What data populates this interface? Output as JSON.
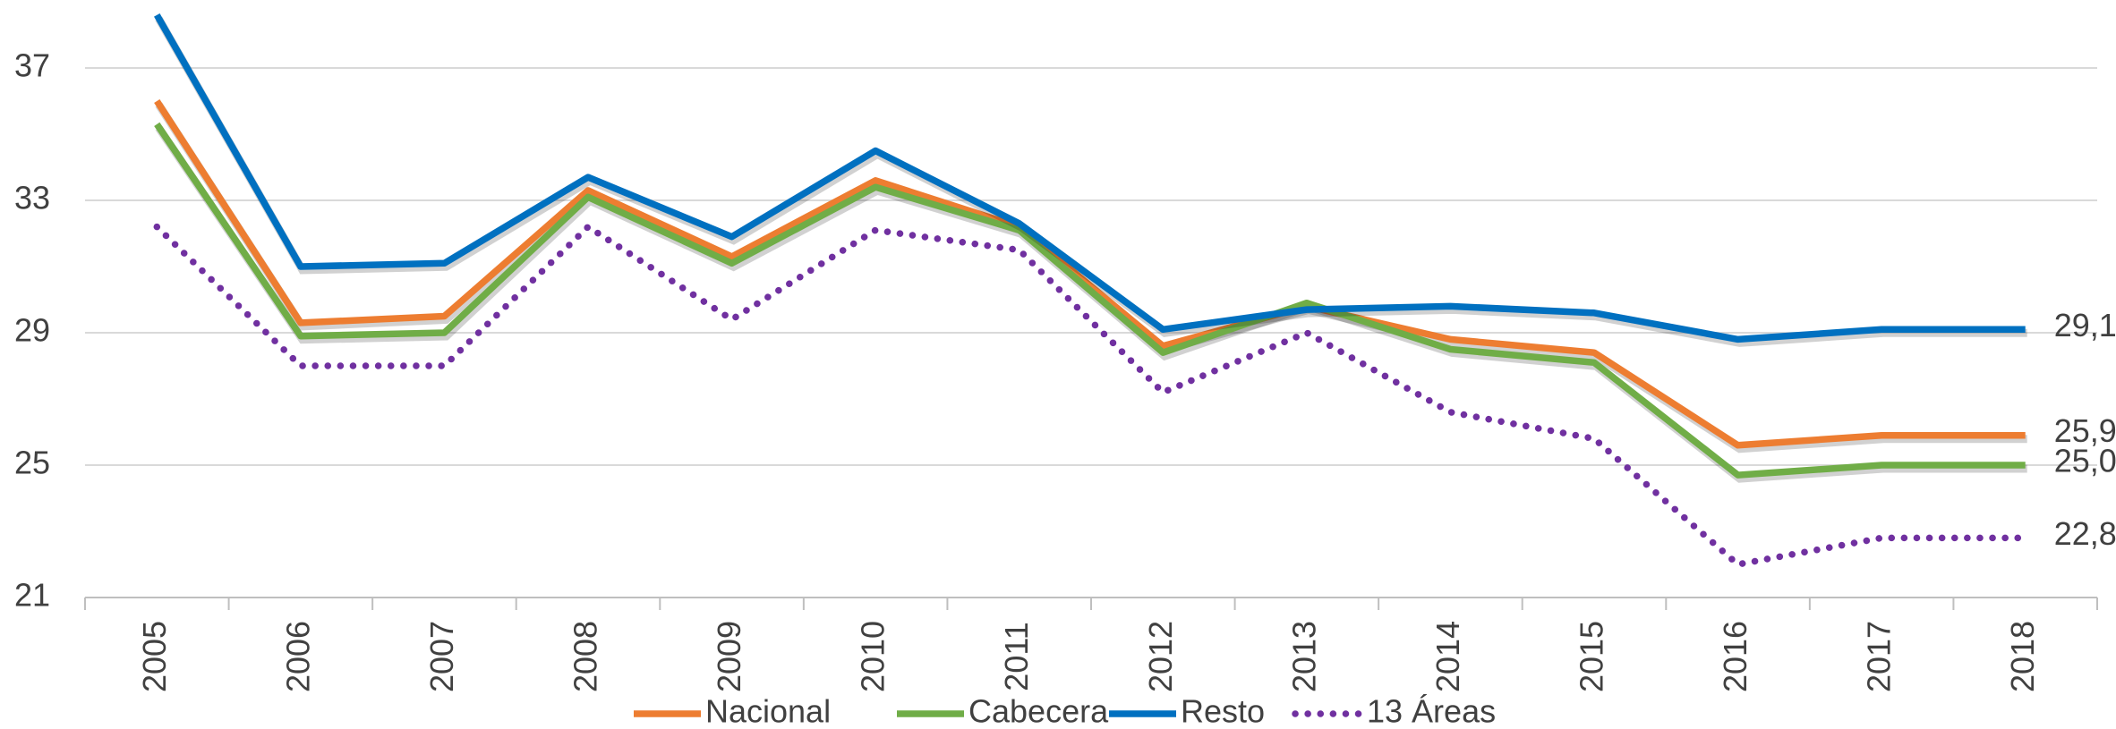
{
  "chart_data": {
    "type": "line",
    "categories": [
      "2005",
      "2006",
      "2007",
      "2008",
      "2009",
      "2010",
      "2011",
      "2012",
      "2013",
      "2014",
      "2015",
      "2016",
      "2017",
      "2018"
    ],
    "series": [
      {
        "name": "Nacional",
        "color": "#ed7d31",
        "dash": "solid",
        "values": [
          36.0,
          29.3,
          29.5,
          33.3,
          31.3,
          33.6,
          32.2,
          28.6,
          29.8,
          28.8,
          28.4,
          25.6,
          25.9,
          25.9
        ],
        "value_labels": [
          null,
          null,
          null,
          null,
          null,
          null,
          null,
          null,
          null,
          null,
          null,
          null,
          null,
          "25,9"
        ]
      },
      {
        "name": "Cabecera",
        "color": "#70ad47",
        "dash": "solid",
        "values": [
          35.3,
          28.9,
          29.0,
          33.1,
          31.1,
          33.4,
          32.1,
          28.4,
          29.9,
          28.5,
          28.1,
          24.7,
          25.0,
          25.0
        ],
        "value_labels": [
          null,
          null,
          null,
          null,
          null,
          null,
          null,
          null,
          null,
          null,
          null,
          null,
          null,
          "25,0"
        ]
      },
      {
        "name": "Resto",
        "color": "#0070c0",
        "dash": "solid",
        "values": [
          38.6,
          31.0,
          31.1,
          33.7,
          31.9,
          34.5,
          32.3,
          29.1,
          29.7,
          29.8,
          29.6,
          28.8,
          29.1,
          29.1
        ],
        "value_labels": [
          null,
          null,
          null,
          null,
          null,
          null,
          null,
          null,
          null,
          null,
          null,
          null,
          null,
          "29,1"
        ]
      },
      {
        "name": "13 Áreas",
        "color": "#7030a0",
        "dash": "dotted",
        "values": [
          32.2,
          28.0,
          28.0,
          32.2,
          29.4,
          32.1,
          31.5,
          27.2,
          29.0,
          26.6,
          25.8,
          22.0,
          22.8,
          22.8
        ],
        "value_labels": [
          null,
          null,
          null,
          null,
          null,
          null,
          null,
          null,
          null,
          null,
          null,
          null,
          null,
          "22,8"
        ]
      }
    ],
    "ylim": [
      21,
      39
    ],
    "yticks": [
      21,
      25,
      29,
      33,
      37
    ],
    "grid": true,
    "legend": "bottom"
  }
}
